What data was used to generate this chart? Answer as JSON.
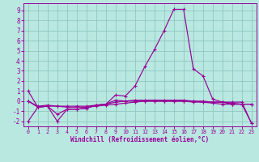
{
  "xlabel": "Windchill (Refroidissement éolien,°C)",
  "x_ticks": [
    0,
    1,
    2,
    3,
    4,
    5,
    6,
    7,
    8,
    9,
    10,
    11,
    12,
    13,
    14,
    15,
    16,
    17,
    18,
    19,
    20,
    21,
    22,
    23
  ],
  "ylim": [
    -2.5,
    9.7
  ],
  "xlim": [
    -0.5,
    23.5
  ],
  "background_color": "#b8e8e0",
  "grid_color": "#90c8c0",
  "line_color": "#990099",
  "line1_y": [
    1.0,
    -0.6,
    -0.5,
    -1.3,
    -0.8,
    -0.8,
    -0.7,
    -0.4,
    -0.3,
    0.6,
    0.5,
    1.5,
    3.4,
    5.1,
    7.0,
    9.1,
    9.1,
    3.2,
    2.5,
    0.2,
    -0.1,
    -0.3,
    -0.3,
    -2.2
  ],
  "line2_y": [
    0.0,
    -0.6,
    -0.5,
    -0.5,
    -0.6,
    -0.6,
    -0.6,
    -0.5,
    -0.4,
    -0.3,
    -0.2,
    -0.1,
    0.0,
    0.0,
    0.0,
    0.0,
    0.0,
    -0.1,
    -0.1,
    -0.2,
    -0.3,
    -0.3,
    -0.3,
    -0.3
  ],
  "line3_y": [
    0.0,
    -0.5,
    -0.4,
    -0.5,
    -0.5,
    -0.5,
    -0.5,
    -0.4,
    -0.3,
    -0.1,
    0.0,
    0.1,
    0.1,
    0.1,
    0.1,
    0.1,
    0.1,
    0.0,
    -0.1,
    -0.1,
    -0.1,
    -0.2,
    -0.3,
    -0.3
  ],
  "line4_y": [
    -2.0,
    -0.6,
    -0.5,
    -2.0,
    -0.8,
    -0.8,
    -0.7,
    -0.4,
    -0.3,
    0.1,
    0.0,
    0.0,
    0.0,
    0.0,
    0.0,
    0.0,
    0.0,
    0.0,
    0.0,
    -0.1,
    -0.1,
    -0.1,
    -0.1,
    -2.2
  ],
  "yticks": [
    -2,
    -1,
    0,
    1,
    2,
    3,
    4,
    5,
    6,
    7,
    8,
    9
  ]
}
